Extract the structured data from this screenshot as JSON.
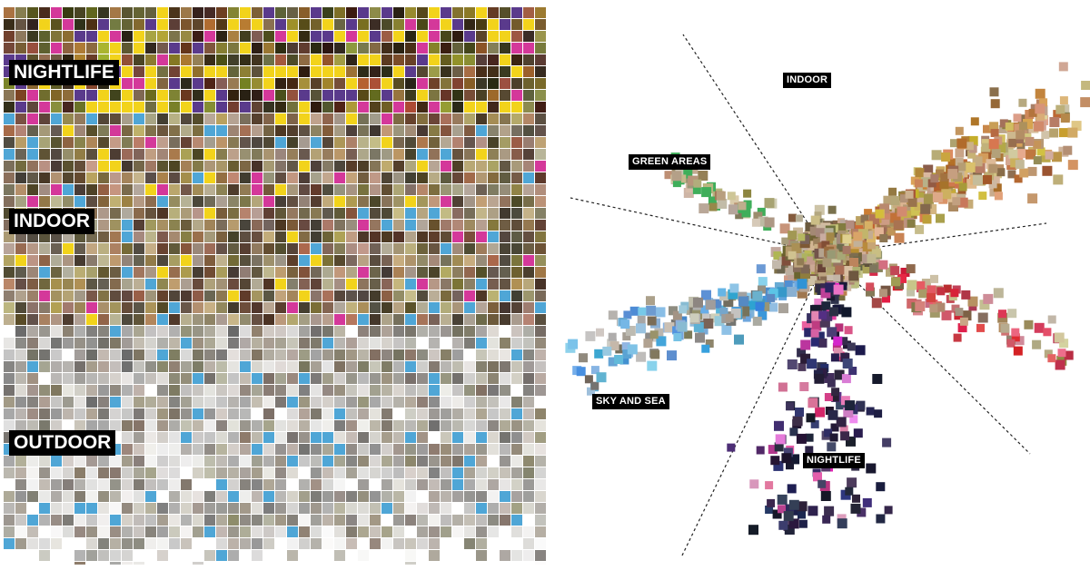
{
  "mosaic": {
    "labels": {
      "nightlife": "NIGHTLIFE",
      "indoor": "INDOOR",
      "outdoor": "OUTDOOR"
    }
  },
  "scatter": {
    "labels": {
      "indoor": "INDOOR",
      "green_areas": "GREEN AREAS",
      "sky_and_sea": "SKY AND SEA",
      "nightlife": "NIGHTLIFE"
    }
  },
  "colors": {
    "label_bg": "#000000",
    "label_text": "#ffffff",
    "divider": "#222222",
    "yellow_accent": "#f2d31b",
    "magenta_accent": "#d4389a",
    "sky_blue": "#4fa6d6",
    "green_accent": "#3fae5a"
  }
}
